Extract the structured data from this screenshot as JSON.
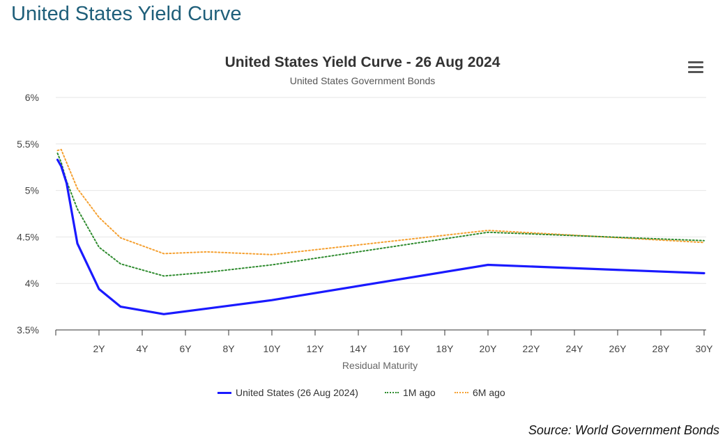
{
  "page": {
    "heading": "United States Yield Curve",
    "source": "Source: World Government Bonds"
  },
  "colors": {
    "heading": "#1f5f7a",
    "us": "#1a1aff",
    "m1": "#2e8b2e",
    "m6": "#f5a030",
    "grid": "#e6e6e6"
  },
  "icons": {
    "menu": "hamburger-menu-icon"
  },
  "chart_data": {
    "type": "line",
    "title": "United States Yield Curve - 26 Aug 2024",
    "subtitle": "United States Government Bonds",
    "xlabel": "Residual Maturity",
    "ylabel": "",
    "xlim": [
      0,
      30
    ],
    "ylim": [
      3.5,
      6
    ],
    "x_ticks": [
      {
        "value": 2,
        "label": "2Y"
      },
      {
        "value": 4,
        "label": "4Y"
      },
      {
        "value": 6,
        "label": "6Y"
      },
      {
        "value": 8,
        "label": "8Y"
      },
      {
        "value": 10,
        "label": "10Y"
      },
      {
        "value": 12,
        "label": "12Y"
      },
      {
        "value": 14,
        "label": "14Y"
      },
      {
        "value": 16,
        "label": "16Y"
      },
      {
        "value": 18,
        "label": "18Y"
      },
      {
        "value": 20,
        "label": "20Y"
      },
      {
        "value": 22,
        "label": "22Y"
      },
      {
        "value": 24,
        "label": "24Y"
      },
      {
        "value": 26,
        "label": "26Y"
      },
      {
        "value": 28,
        "label": "28Y"
      },
      {
        "value": 30,
        "label": "30Y"
      }
    ],
    "y_ticks": [
      {
        "value": 3.5,
        "label": "3.5%"
      },
      {
        "value": 4,
        "label": "4%"
      },
      {
        "value": 4.5,
        "label": "4.5%"
      },
      {
        "value": 5,
        "label": "5%"
      },
      {
        "value": 5.5,
        "label": "5.5%"
      },
      {
        "value": 6,
        "label": "6%"
      }
    ],
    "grid": true,
    "legend_position": "bottom",
    "series": [
      {
        "name": "United States (26 Aug 2024)",
        "style": "solid",
        "x": [
          0.08,
          0.25,
          0.5,
          1,
          2,
          3,
          5,
          7,
          10,
          20,
          30
        ],
        "y": [
          5.33,
          5.26,
          5.08,
          4.43,
          3.94,
          3.75,
          3.67,
          3.73,
          3.82,
          4.2,
          4.11
        ]
      },
      {
        "name": "1M ago",
        "style": "dotted",
        "x": [
          0.08,
          0.25,
          0.5,
          1,
          2,
          3,
          5,
          7,
          10,
          20,
          30
        ],
        "y": [
          5.4,
          5.3,
          5.1,
          4.8,
          4.39,
          4.21,
          4.08,
          4.12,
          4.2,
          4.55,
          4.46
        ]
      },
      {
        "name": "6M ago",
        "style": "dotted",
        "x": [
          0.08,
          0.25,
          0.5,
          1,
          2,
          3,
          5,
          7,
          10,
          20,
          30
        ],
        "y": [
          5.43,
          5.44,
          5.3,
          5.02,
          4.71,
          4.49,
          4.32,
          4.34,
          4.31,
          4.57,
          4.44
        ]
      }
    ]
  }
}
